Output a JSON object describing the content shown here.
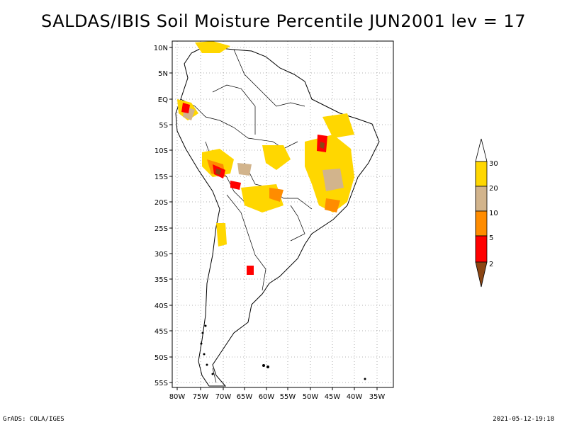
{
  "title": "SALDAS/IBIS Soil Moisture Percentile JUN2001 lev = 17",
  "footer": {
    "left": "GrADS: COLA/IGES",
    "right": "2021-05-12-19:18"
  },
  "map": {
    "lat_labels": [
      "10N",
      "5N",
      "EQ",
      "5S",
      "10S",
      "15S",
      "20S",
      "25S",
      "30S",
      "35S",
      "40S",
      "45S",
      "50S",
      "55S"
    ],
    "lon_labels": [
      "80W",
      "75W",
      "70W",
      "65W",
      "60W",
      "55W",
      "50W",
      "45W",
      "40W",
      "35W"
    ],
    "lat_range": [
      -56,
      12
    ],
    "lon_range": [
      -81,
      -33
    ],
    "grid": true,
    "grid_style": "dotted"
  },
  "legend": {
    "labels": [
      "2",
      "5",
      "10",
      "20",
      "30"
    ],
    "colors": {
      "below_2": "#8b4513",
      "2_to_5": "#ff0000",
      "5_to_10": "#ff8c00",
      "10_to_20": "#d2b48c",
      "20_to_30": "#ffd700",
      "above_30": "#ffffff"
    }
  }
}
